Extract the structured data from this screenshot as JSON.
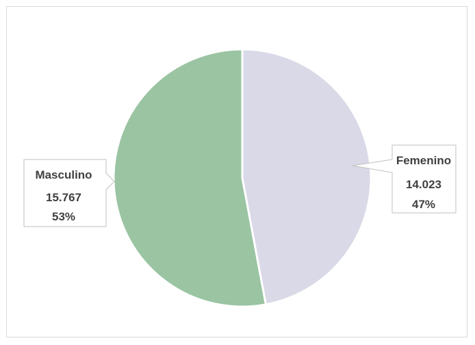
{
  "chart_data": {
    "type": "pie",
    "title": "",
    "slices": [
      {
        "label": "Femenino",
        "value_label": "14.023",
        "value": 14023,
        "percent_label": "47%",
        "color": "#d9d9e8"
      },
      {
        "label": "Masculino",
        "value_label": "15.767",
        "value": 15767,
        "percent_label": "53%",
        "color": "#9ac4a2"
      }
    ],
    "start_angle_deg": 0,
    "direction": "clockwise",
    "legend": "none",
    "data_labels": "callouts"
  }
}
